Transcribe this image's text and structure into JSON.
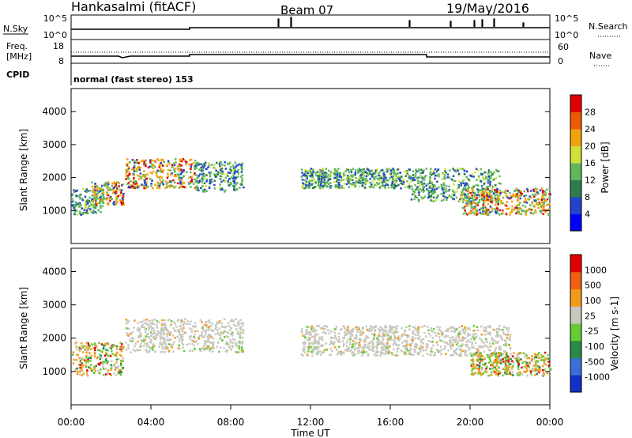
{
  "header": {
    "station": "Hankasalmi (fitACF)",
    "beam": "Beam 07",
    "date": "19/May/2016"
  },
  "sky_panel": {
    "left_label": "N.Sky",
    "left_ticks": [
      "10^5",
      "10^0"
    ],
    "right_ticks": [
      "10^5",
      "10^0"
    ],
    "right_label": "N.Search"
  },
  "freq_panel": {
    "left_label_1": "Freq.",
    "left_label_2": "[MHz]",
    "left_ticks": [
      "18",
      "8"
    ],
    "right_ticks": [
      "60",
      "0"
    ],
    "right_label": "Nave"
  },
  "cpid_panel": {
    "label": "CPID",
    "value": "normal (fast stereo) 153"
  },
  "chart_data": [
    {
      "type": "heatmap",
      "name": "power",
      "ylabel": "Slant Range [km]",
      "ylim": [
        0,
        4700
      ],
      "y_ticks": [
        1000,
        2000,
        3000,
        4000
      ],
      "y_tick_labels": [
        "1000",
        "2000",
        "3000",
        "4000"
      ],
      "colorbar_label": "Power [dB]",
      "colorbar_ticks": [
        "28",
        "24",
        "20",
        "16",
        "12",
        "8",
        "4"
      ],
      "colorbar_colors": [
        "#0000ff",
        "#2244cc",
        "#2e7d4f",
        "#5fb85a",
        "#cfe23a",
        "#f2a30c",
        "#ee5a00",
        "#e10000"
      ],
      "scatter_regions_utc_hours_km": [
        {
          "t": [
            0.0,
            1.6
          ],
          "r": [
            900,
            1700
          ],
          "level": "mid"
        },
        {
          "t": [
            1.0,
            2.6
          ],
          "r": [
            1200,
            1900
          ],
          "level": "high"
        },
        {
          "t": [
            2.7,
            6.2
          ],
          "r": [
            1700,
            2600
          ],
          "level": "high"
        },
        {
          "t": [
            6.2,
            8.6
          ],
          "r": [
            1600,
            2500
          ],
          "level": "mid"
        },
        {
          "t": [
            11.5,
            17.0
          ],
          "r": [
            1700,
            2300
          ],
          "level": "mid"
        },
        {
          "t": [
            17.0,
            21.5
          ],
          "r": [
            1300,
            2300
          ],
          "level": "mid"
        },
        {
          "t": [
            19.5,
            24.0
          ],
          "r": [
            900,
            1700
          ],
          "level": "high"
        }
      ]
    },
    {
      "type": "heatmap",
      "name": "velocity",
      "ylabel": "Slant Range [km]",
      "ylim": [
        0,
        4700
      ],
      "y_ticks": [
        1000,
        2000,
        3000,
        4000
      ],
      "y_tick_labels": [
        "1000",
        "2000",
        "3000",
        "4000"
      ],
      "colorbar_label": "Velocity [m s-1]",
      "colorbar_ticks": [
        "1000",
        "500",
        "100",
        "25",
        "-25",
        "-100",
        "-500",
        "-1000"
      ],
      "colorbar_colors": [
        "#1030c8",
        "#3b6fd6",
        "#2a8a48",
        "#66cc33",
        "#c8c8c0",
        "#f29b1a",
        "#f06010",
        "#e00000"
      ],
      "scatter_regions_utc_hours_km": [
        {
          "t": [
            0.0,
            2.6
          ],
          "r": [
            900,
            1900
          ],
          "level": "mixed"
        },
        {
          "t": [
            2.7,
            8.6
          ],
          "r": [
            1600,
            2600
          ],
          "level": "grey"
        },
        {
          "t": [
            11.5,
            22.0
          ],
          "r": [
            1500,
            2400
          ],
          "level": "grey"
        },
        {
          "t": [
            20.0,
            24.0
          ],
          "r": [
            900,
            1600
          ],
          "level": "mixed"
        }
      ]
    }
  ],
  "time_axis": {
    "tick_labels": [
      "00:00",
      "04:00",
      "08:00",
      "12:00",
      "16:00",
      "20:00",
      "00:00"
    ],
    "xlabel": "Time UT"
  },
  "colors": {
    "axis": "#000000",
    "grey_velocity": "#c8c8c0"
  }
}
